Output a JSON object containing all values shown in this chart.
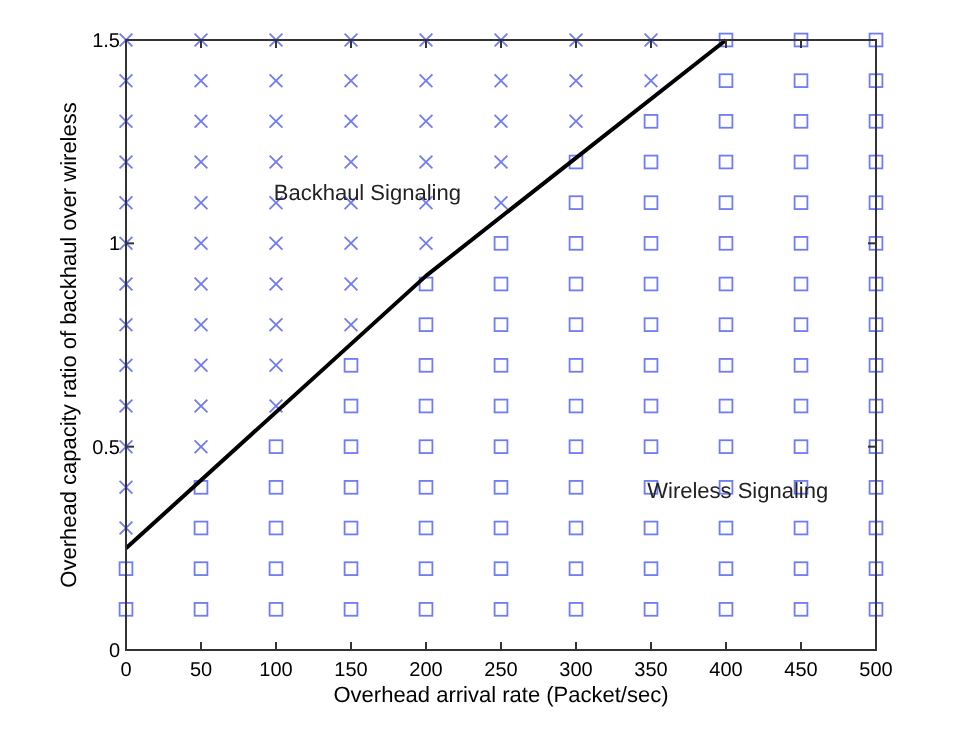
{
  "chart_data": {
    "type": "scatter",
    "xlabel": "Overhead arrival rate (Packet/sec)",
    "ylabel": "Overhead capacity ratio of backhaul over wireless",
    "xlim": [
      0,
      500
    ],
    "xticks": [
      0,
      50,
      100,
      150,
      200,
      250,
      300,
      350,
      400,
      450,
      500
    ],
    "ylim": [
      0,
      1.5
    ],
    "yticks": [
      0,
      0.5,
      1,
      1.5
    ],
    "grid": false,
    "annotations": [
      "Backhaul Signaling",
      "Wireless Signaling"
    ],
    "series": [
      {
        "marker": "cross",
        "color": "#6f7cf2",
        "x": [
          0,
          0,
          0,
          0,
          0,
          0,
          0,
          0,
          0,
          0,
          0,
          0,
          0,
          50,
          50,
          50,
          50,
          50,
          50,
          50,
          50,
          50,
          50,
          50,
          100,
          100,
          100,
          100,
          100,
          100,
          100,
          100,
          100,
          100,
          150,
          150,
          150,
          150,
          150,
          150,
          150,
          150,
          200,
          200,
          200,
          200,
          200,
          200,
          250,
          250,
          250,
          250,
          250,
          300,
          300,
          300,
          350,
          350
        ],
        "values": [
          0.3,
          0.4,
          0.5,
          0.6,
          0.7,
          0.8,
          0.9,
          1,
          1.1,
          1.2,
          1.3,
          1.4,
          1.5,
          0.5,
          0.6,
          0.7,
          0.8,
          0.9,
          1,
          1.1,
          1.2,
          1.3,
          1.4,
          1.5,
          0.6,
          0.7,
          0.8,
          0.9,
          1,
          1.1,
          1.2,
          1.3,
          1.4,
          1.5,
          0.8,
          0.9,
          1,
          1.1,
          1.2,
          1.3,
          1.4,
          1.5,
          1,
          1.1,
          1.2,
          1.3,
          1.4,
          1.5,
          1.1,
          1.2,
          1.3,
          1.4,
          1.5,
          1.3,
          1.4,
          1.5,
          1.4,
          1.5
        ]
      },
      {
        "marker": "square",
        "color": "#6f7cf2",
        "x": [
          0,
          0,
          50,
          50,
          50,
          50,
          100,
          100,
          100,
          100,
          100,
          150,
          150,
          150,
          150,
          150,
          150,
          150,
          200,
          200,
          200,
          200,
          200,
          200,
          200,
          200,
          200,
          250,
          250,
          250,
          250,
          250,
          250,
          250,
          250,
          250,
          250,
          300,
          300,
          300,
          300,
          300,
          300,
          300,
          300,
          300,
          300,
          300,
          300,
          350,
          350,
          350,
          350,
          350,
          350,
          350,
          350,
          350,
          350,
          350,
          350,
          350,
          400,
          400,
          400,
          400,
          400,
          400,
          400,
          400,
          400,
          400,
          400,
          400,
          400,
          400,
          400,
          450,
          450,
          450,
          450,
          450,
          450,
          450,
          450,
          450,
          450,
          450,
          450,
          450,
          450,
          450,
          500,
          500,
          500,
          500,
          500,
          500,
          500,
          500,
          500,
          500,
          500,
          500,
          500,
          500,
          500
        ],
        "values": [
          0.1,
          0.2,
          0.1,
          0.2,
          0.3,
          0.4,
          0.1,
          0.2,
          0.3,
          0.4,
          0.5,
          0.1,
          0.2,
          0.3,
          0.4,
          0.5,
          0.6,
          0.7,
          0.1,
          0.2,
          0.3,
          0.4,
          0.5,
          0.6,
          0.7,
          0.8,
          0.9,
          0.1,
          0.2,
          0.3,
          0.4,
          0.5,
          0.6,
          0.7,
          0.8,
          0.9,
          1,
          0.1,
          0.2,
          0.3,
          0.4,
          0.5,
          0.6,
          0.7,
          0.8,
          0.9,
          1,
          1.1,
          1.2,
          0.1,
          0.2,
          0.3,
          0.4,
          0.5,
          0.6,
          0.7,
          0.8,
          0.9,
          1,
          1.1,
          1.2,
          1.3,
          0.1,
          0.2,
          0.3,
          0.4,
          0.5,
          0.6,
          0.7,
          0.8,
          0.9,
          1,
          1.1,
          1.2,
          1.3,
          1.4,
          1.5,
          0.1,
          0.2,
          0.3,
          0.4,
          0.5,
          0.6,
          0.7,
          0.8,
          0.9,
          1,
          1.1,
          1.2,
          1.3,
          1.4,
          1.5,
          0.1,
          0.2,
          0.3,
          0.4,
          0.5,
          0.6,
          0.7,
          0.8,
          0.9,
          1,
          1.1,
          1.2,
          1.3,
          1.4,
          1.5
        ]
      },
      {
        "type": "line",
        "marker": "none",
        "line_style": "solid",
        "color": "#000000",
        "x": [
          0,
          200,
          400
        ],
        "values": [
          0.25,
          0.92,
          1.5
        ]
      }
    ]
  }
}
